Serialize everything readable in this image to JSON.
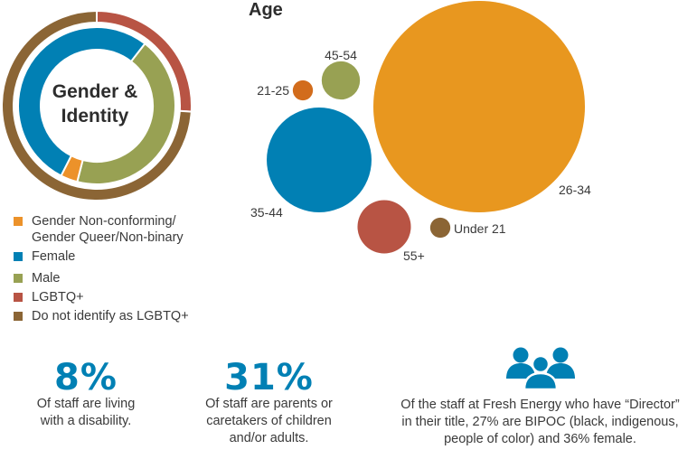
{
  "colors": {
    "gender_nonconforming": "#ec922a",
    "female": "#0180b4",
    "male": "#98a153",
    "lgbtq": "#b85444",
    "not_lgbtq": "#8b6535",
    "age_26_34": "#e8971f",
    "age_35_44": "#0180b4",
    "age_45_54": "#98a153",
    "age_21_25": "#d26c1c",
    "age_55_plus": "#b85444",
    "age_under_21": "#8b6535",
    "stat_blue": "#0180b4"
  },
  "chart_data": [
    {
      "type": "pie",
      "variant": "nested-donut",
      "title": "Gender & Identity",
      "center_label_lines": [
        "Gender &",
        "Identity"
      ],
      "rings": [
        {
          "name": "outer",
          "slices": [
            {
              "label": "LGBTQ+",
              "value": 26,
              "color_key": "lgbtq"
            },
            {
              "label": "Do not identify as LGBTQ+",
              "value": 74,
              "color_key": "not_lgbtq"
            }
          ]
        },
        {
          "name": "inner",
          "start_offset_pct": 10.5,
          "slices": [
            {
              "label": "Male",
              "value": 43.5,
              "color_key": "male"
            },
            {
              "label": "Gender Non-conforming/ Gender Queer/Non-binary",
              "value": 3.5,
              "color_key": "gender_nonconforming"
            },
            {
              "label": "Female",
              "value": 53,
              "color_key": "female"
            }
          ]
        }
      ],
      "legend": [
        {
          "label": "Gender Non-conforming/\nGender Queer/Non-binary",
          "color_key": "gender_nonconforming"
        },
        {
          "label": "Female",
          "color_key": "female"
        },
        {
          "label": "Male",
          "color_key": "male"
        },
        {
          "label": "LGBTQ+",
          "color_key": "lgbtq"
        },
        {
          "label": "Do not identify as LGBTQ+",
          "color_key": "not_lgbtq"
        }
      ],
      "legend_position": "bottom-left"
    },
    {
      "type": "scatter",
      "variant": "bubble",
      "title": "Age",
      "bubbles": [
        {
          "label": "26-34",
          "value": 55,
          "color_key": "age_26_34"
        },
        {
          "label": "35-44",
          "value": 13.5,
          "color_key": "age_35_44"
        },
        {
          "label": "55+",
          "value": 3.5,
          "color_key": "age_55_plus"
        },
        {
          "label": "45-54",
          "value": 1.8,
          "color_key": "age_45_54"
        },
        {
          "label": "21-25",
          "value": 0.5,
          "color_key": "age_21_25"
        },
        {
          "label": "Under 21",
          "value": 0.5,
          "color_key": "age_under_21"
        }
      ]
    }
  ],
  "stats": [
    {
      "value": "8%",
      "text": "Of staff are living\nwith a disability."
    },
    {
      "value": "31%",
      "text": "Of staff are parents or\ncaretakers of children\nand/or adults."
    },
    {
      "icon": "people-group-icon",
      "text": "Of the staff at Fresh Energy who have “Director”\nin their title, 27% are BIPOC (black, indigenous,\npeople of color) and 36% female."
    }
  ]
}
